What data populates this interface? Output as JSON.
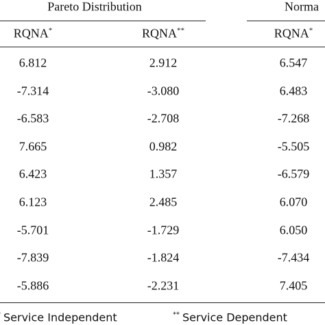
{
  "table": {
    "groups": [
      "Pareto Distribution",
      "Norma"
    ],
    "columns": [
      {
        "text": "RQNA",
        "sup": "*"
      },
      {
        "text": "RQNA",
        "sup": "**"
      },
      {
        "text": "RQNA",
        "sup": "*"
      }
    ],
    "rows": [
      [
        "6.812",
        "2.912",
        "6.547"
      ],
      [
        "-7.314",
        "-3.080",
        "6.483"
      ],
      [
        "-6.583",
        "-2.708",
        "-7.268"
      ],
      [
        "7.665",
        "0.982",
        "-5.505"
      ],
      [
        "6.423",
        "1.357",
        "-6.579"
      ],
      [
        "6.123",
        "2.485",
        "6.070"
      ],
      [
        "-5.701",
        "-1.729",
        "6.050"
      ],
      [
        "-7.839",
        "-1.824",
        "-7.434"
      ],
      [
        "-5.886",
        "-2.231",
        "7.405"
      ]
    ]
  },
  "footnotes": [
    {
      "mark": "*",
      "text": "Service Independent"
    },
    {
      "mark": "**",
      "text": "Service Dependent"
    }
  ]
}
